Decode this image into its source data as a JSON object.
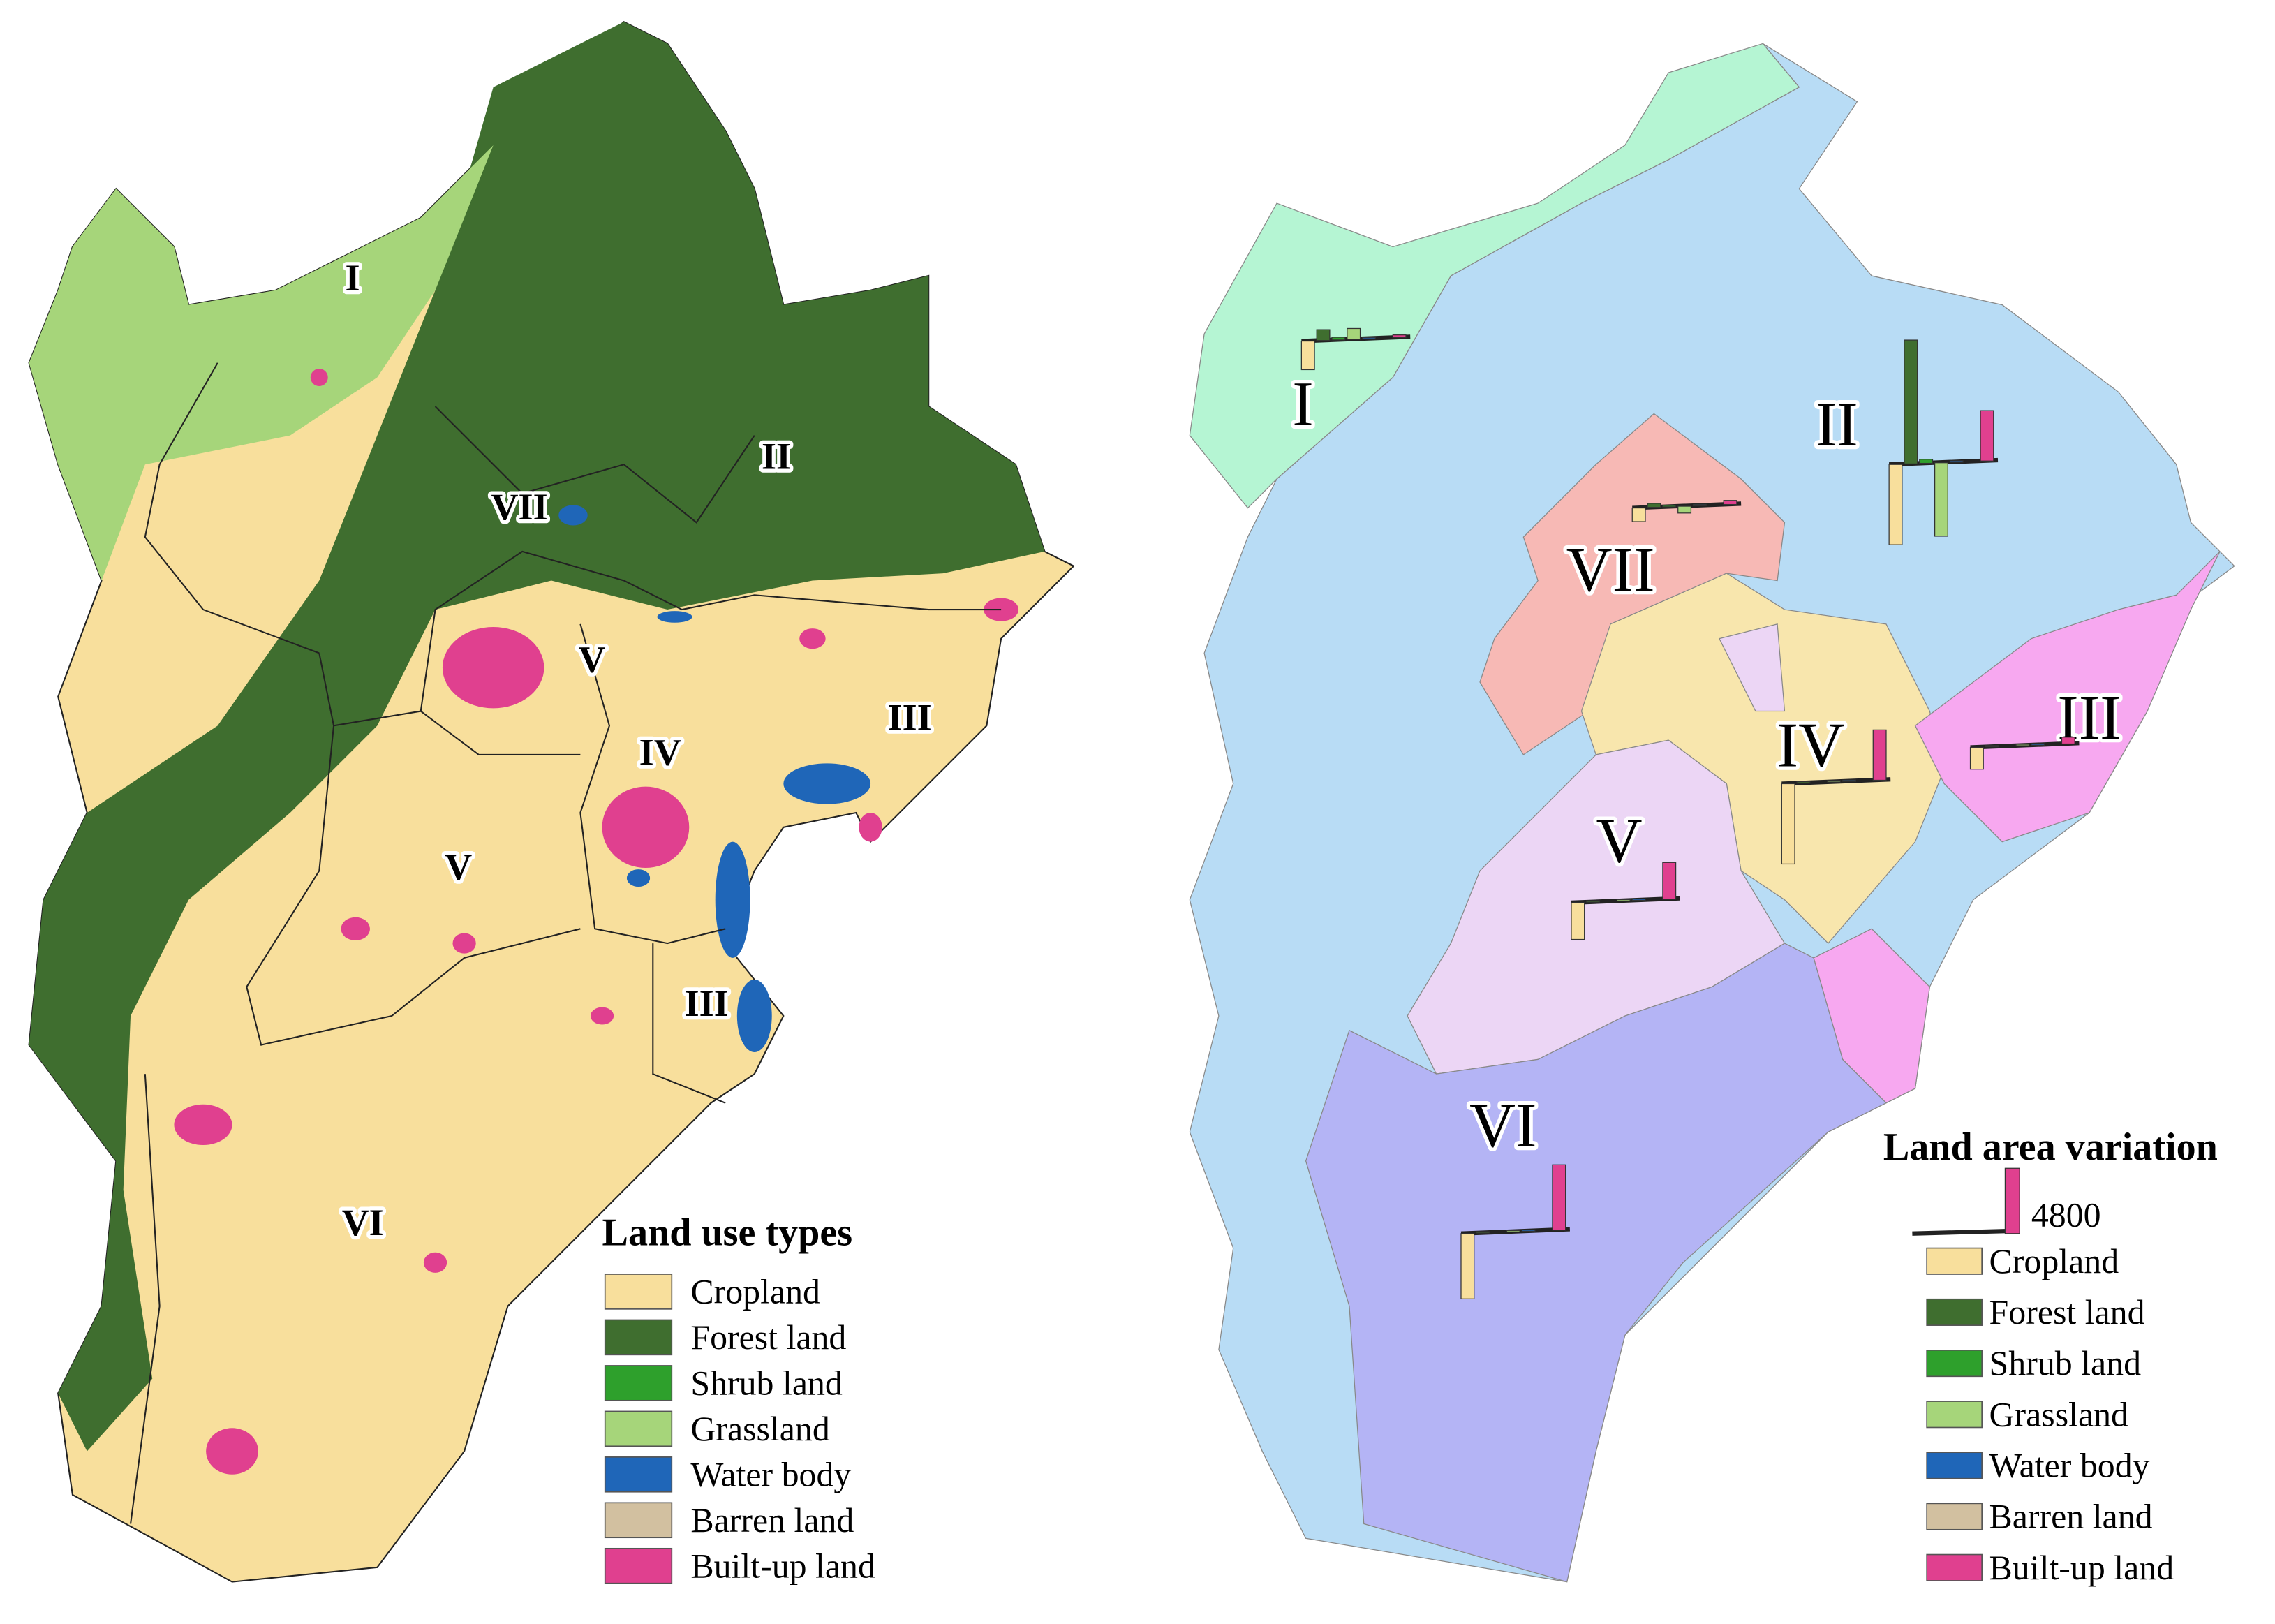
{
  "left_map": {
    "region_labels": [
      "I",
      "II",
      "VII",
      "V",
      "IV",
      "III",
      "V",
      "III",
      "VI"
    ],
    "legend": {
      "title": "Land use types",
      "items": [
        {
          "label": "Cropland",
          "color": "#f8df9c"
        },
        {
          "label": "Forest land",
          "color": "#3f6e2f"
        },
        {
          "label": "Shrub land",
          "color": "#2ea02c"
        },
        {
          "label": "Grassland",
          "color": "#a6d57a"
        },
        {
          "label": "Water body",
          "color": "#1f66b8"
        },
        {
          "label": "Barren land",
          "color": "#d2c0a0"
        },
        {
          "label": "Built-up land",
          "color": "#e0408f"
        }
      ]
    }
  },
  "right_map": {
    "regions": [
      {
        "label": "I",
        "color": "#b5f5d3",
        "variation": [
          -2100,
          800,
          200,
          800,
          100,
          0,
          200
        ]
      },
      {
        "label": "II",
        "color": "#b8dcf5",
        "variation": [
          -5900,
          9100,
          300,
          -5400,
          100,
          0,
          3700
        ]
      },
      {
        "label": "VII",
        "color": "#f7b9b5",
        "variation": [
          -1000,
          300,
          100,
          -500,
          100,
          0,
          300
        ]
      },
      {
        "label": "III",
        "color": "#f7a8f0",
        "variation": [
          -1600,
          100,
          0,
          100,
          100,
          0,
          500
        ]
      },
      {
        "label": "IV",
        "color": "#f8e6ad",
        "variation": [
          -5900,
          100,
          0,
          100,
          100,
          0,
          3700
        ]
      },
      {
        "label": "V",
        "color": "#ecd6f5",
        "variation": [
          -2700,
          100,
          0,
          100,
          100,
          0,
          2700
        ]
      },
      {
        "label": "VI",
        "color": "#b4b4f5",
        "variation": [
          -4800,
          100,
          0,
          100,
          100,
          0,
          4800
        ]
      }
    ],
    "legend": {
      "title": "Land area variation",
      "scale_value": 4800,
      "items": [
        {
          "label": "Cropland",
          "color": "#f8df9c"
        },
        {
          "label": "Forest land",
          "color": "#3f6e2f"
        },
        {
          "label": "Shrub land",
          "color": "#2ea02c"
        },
        {
          "label": "Grassland",
          "color": "#a6d57a"
        },
        {
          "label": "Water body",
          "color": "#1f66b8"
        },
        {
          "label": "Barren land",
          "color": "#d2c0a0"
        },
        {
          "label": "Built-up land",
          "color": "#e0408f"
        }
      ]
    }
  }
}
